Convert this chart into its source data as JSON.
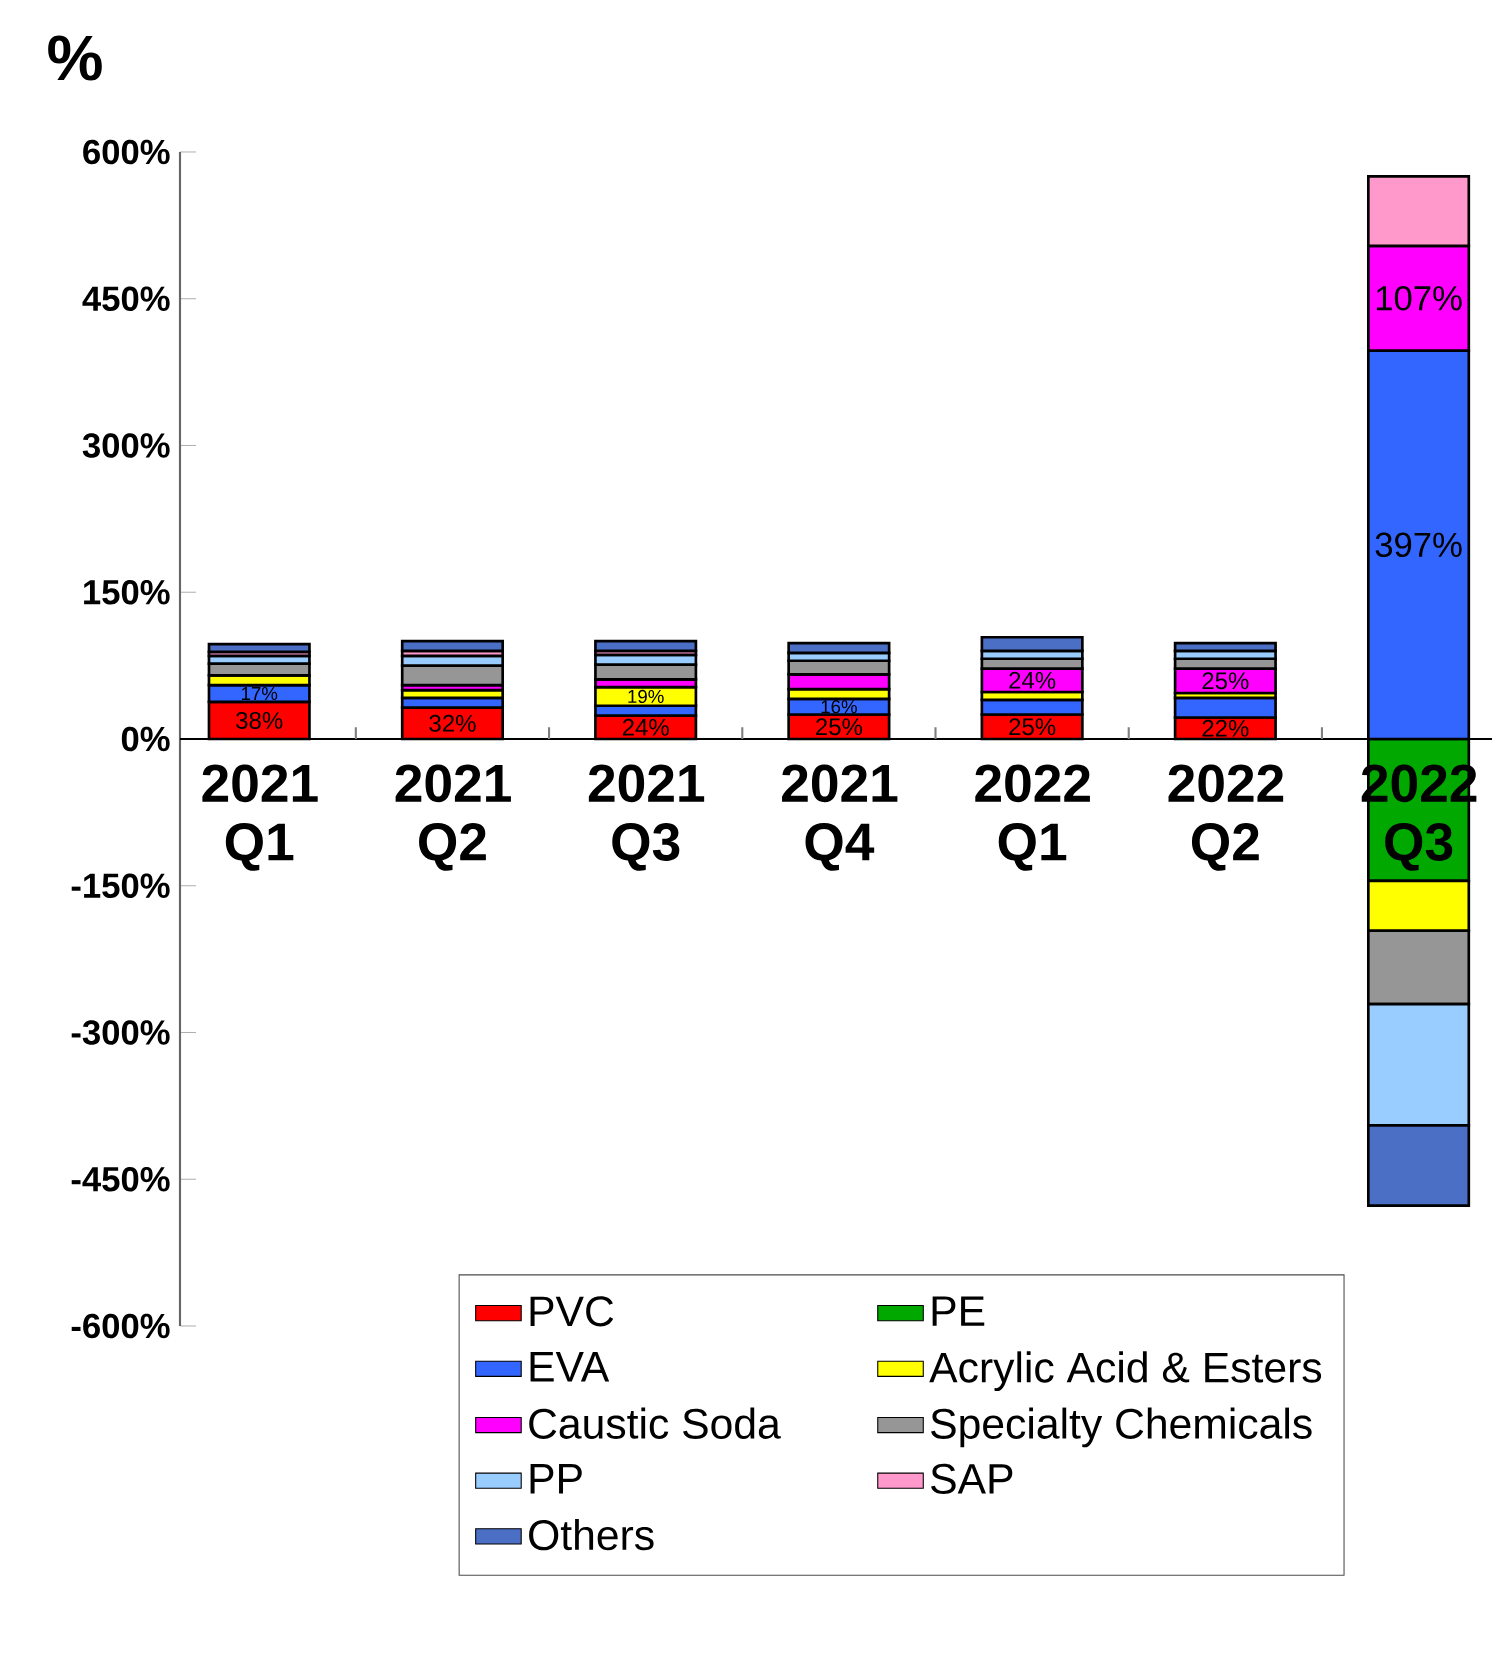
{
  "chart_data": {
    "type": "bar",
    "stacked": true,
    "ylabel": "%",
    "categories": [
      "2021 Q1",
      "2021 Q2",
      "2021 Q3",
      "2021 Q4",
      "2022 Q1",
      "2022 Q2",
      "2022 Q3"
    ],
    "ylim": [
      -600,
      600
    ],
    "yticks": [
      {
        "value": -600,
        "label": "-600%"
      },
      {
        "value": -450,
        "label": "-450%"
      },
      {
        "value": -300,
        "label": "-300%"
      },
      {
        "value": -150,
        "label": "-150%"
      },
      {
        "value": 0,
        "label": "0%"
      },
      {
        "value": 150,
        "label": "150%"
      },
      {
        "value": 300,
        "label": "300%"
      },
      {
        "value": 450,
        "label": "450%"
      },
      {
        "value": 600,
        "label": "600%"
      }
    ],
    "legend": "bottom",
    "series": [
      {
        "name": "PVC",
        "color": "#ff0000",
        "values": [
          38,
          32,
          24,
          25,
          25,
          22,
          0
        ],
        "value_labels": [
          "38%",
          "32%",
          "24%",
          "25%",
          "25%",
          "22%",
          null
        ]
      },
      {
        "name": "PE",
        "color": "#00a800",
        "values": [
          0,
          0,
          0,
          0,
          0,
          0,
          -145
        ]
      },
      {
        "name": "EVA",
        "color": "#3366ff",
        "values": [
          17,
          10,
          10,
          16,
          15,
          20,
          397
        ],
        "value_labels": [
          "17%",
          null,
          null,
          "16%",
          null,
          null,
          "397%"
        ]
      },
      {
        "name": "Acrylic Acid & Esters",
        "color": "#ffff00",
        "values": [
          10,
          8,
          19,
          10,
          8,
          5,
          -51
        ],
        "value_labels": [
          null,
          null,
          "19%",
          null,
          null,
          null,
          null
        ]
      },
      {
        "name": "Caustic Soda",
        "color": "#ff00ff",
        "values": [
          null,
          5,
          8,
          15,
          24,
          25,
          107
        ],
        "value_labels": [
          null,
          null,
          null,
          null,
          "24%",
          "25%",
          "107%"
        ]
      },
      {
        "name": "Specialty Chemicals",
        "color": "#969696",
        "values": [
          12,
          20,
          15,
          14,
          10,
          10,
          -75
        ]
      },
      {
        "name": "PP",
        "color": "#99ccff",
        "values": [
          8,
          10,
          10,
          8,
          8,
          8,
          -124
        ]
      },
      {
        "name": "SAP",
        "color": "#ff99cc",
        "values": [
          4,
          5,
          4,
          null,
          null,
          null,
          71
        ]
      },
      {
        "name": "Others",
        "color": "#4a6fc4",
        "values": [
          8,
          10,
          10,
          10,
          14,
          8,
          -82
        ]
      }
    ]
  }
}
